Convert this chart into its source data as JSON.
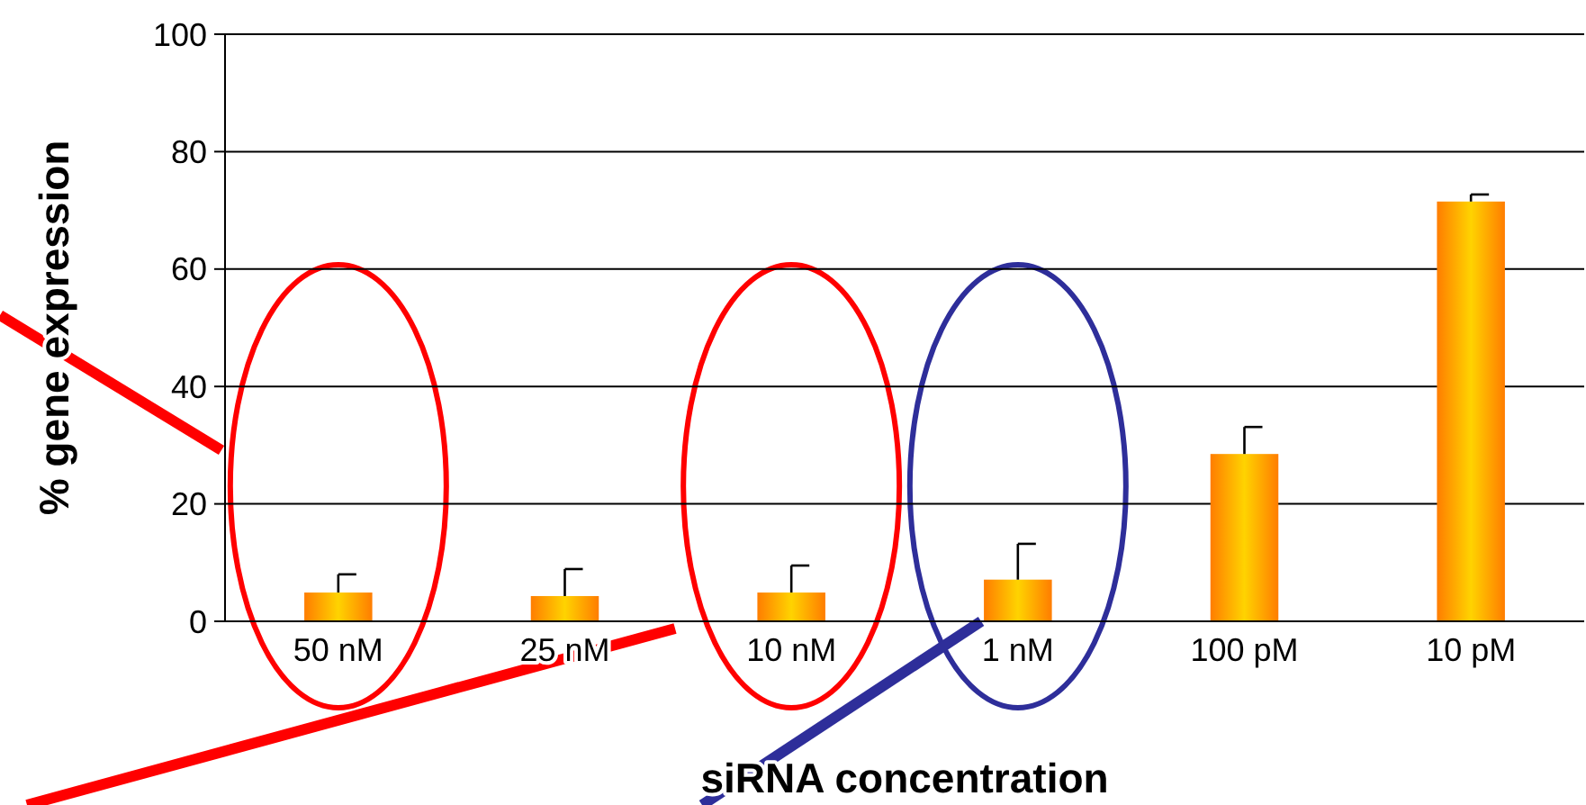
{
  "chart_data": {
    "type": "bar",
    "xlabel": "siRNA concentration",
    "ylabel": "% gene expression",
    "categories": [
      "50 nM",
      "25 nM",
      "10 nM",
      "1 nM",
      "100 pM",
      "10 pM"
    ],
    "values": [
      4.9,
      4.3,
      4.9,
      7.1,
      28.5,
      71.5
    ],
    "errors": [
      [
        4.9,
        8.0
      ],
      [
        4.3,
        8.9
      ],
      [
        4.9,
        9.5
      ],
      [
        7.1,
        13.2
      ],
      [
        28.5,
        33.1
      ],
      [
        71.5,
        72.7
      ]
    ],
    "color": "#ffc000",
    "ylim": [
      0,
      100
    ],
    "yticks": [
      0,
      20,
      40,
      60,
      80,
      100
    ],
    "grid": "y"
  }
}
